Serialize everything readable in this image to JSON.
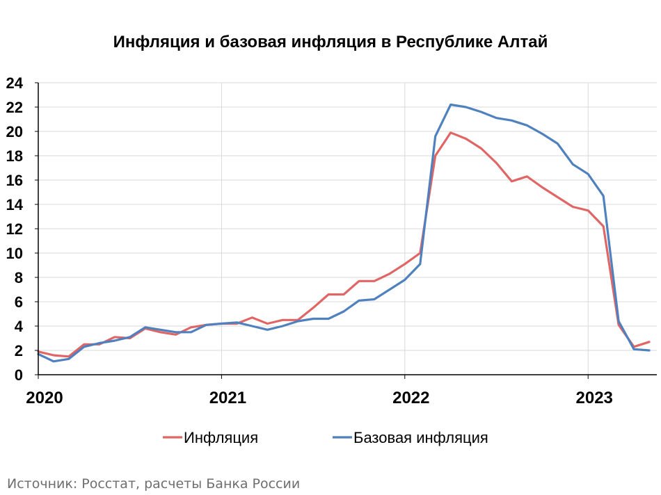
{
  "chart_data": {
    "type": "line",
    "title": "Инфляция и базовая инфляция в Республике Алтай",
    "xlabel": "",
    "ylabel": "",
    "x_ticks": [
      "2020",
      "2021",
      "2022",
      "2023"
    ],
    "x": [
      "2020-01",
      "2020-02",
      "2020-03",
      "2020-04",
      "2020-05",
      "2020-06",
      "2020-07",
      "2020-08",
      "2020-09",
      "2020-10",
      "2020-11",
      "2020-12",
      "2021-01",
      "2021-02",
      "2021-03",
      "2021-04",
      "2021-05",
      "2021-06",
      "2021-07",
      "2021-08",
      "2021-09",
      "2021-10",
      "2021-11",
      "2021-12",
      "2022-01",
      "2022-02",
      "2022-03",
      "2022-04",
      "2022-05",
      "2022-06",
      "2022-07",
      "2022-08",
      "2022-09",
      "2022-10",
      "2022-11",
      "2022-12",
      "2023-01",
      "2023-02",
      "2023-03",
      "2023-04",
      "2023-05"
    ],
    "ylim": [
      0,
      24
    ],
    "y_ticks": [
      "0",
      "2",
      "4",
      "6",
      "8",
      "10",
      "12",
      "14",
      "16",
      "18",
      "20",
      "22",
      "24"
    ],
    "grid": true,
    "legend_position": "bottom",
    "series": [
      {
        "name": "Инфляция",
        "color": "#e06666",
        "values": [
          1.9,
          1.6,
          1.5,
          2.5,
          2.5,
          3.1,
          3.0,
          3.8,
          3.5,
          3.3,
          3.9,
          4.1,
          4.2,
          4.2,
          4.7,
          4.2,
          4.5,
          4.5,
          5.5,
          6.6,
          6.6,
          7.7,
          7.7,
          8.3,
          9.1,
          10.0,
          18.0,
          19.9,
          19.4,
          18.6,
          17.4,
          15.9,
          16.3,
          15.4,
          14.6,
          13.8,
          13.5,
          12.2,
          4.1,
          2.3,
          2.7
        ]
      },
      {
        "name": "Базовая инфляция",
        "color": "#4e81bd",
        "values": [
          1.7,
          1.1,
          1.3,
          2.3,
          2.6,
          2.8,
          3.1,
          3.9,
          3.7,
          3.5,
          3.5,
          4.1,
          4.2,
          4.3,
          4.0,
          3.7,
          4.0,
          4.4,
          4.6,
          4.6,
          5.2,
          6.1,
          6.2,
          7.0,
          7.8,
          9.1,
          19.6,
          22.2,
          22.0,
          21.6,
          21.1,
          20.9,
          20.5,
          19.8,
          19.0,
          17.3,
          16.5,
          14.7,
          4.4,
          2.1,
          2.0
        ]
      }
    ]
  },
  "source": "Источник: Росстат, расчеты Банка России"
}
